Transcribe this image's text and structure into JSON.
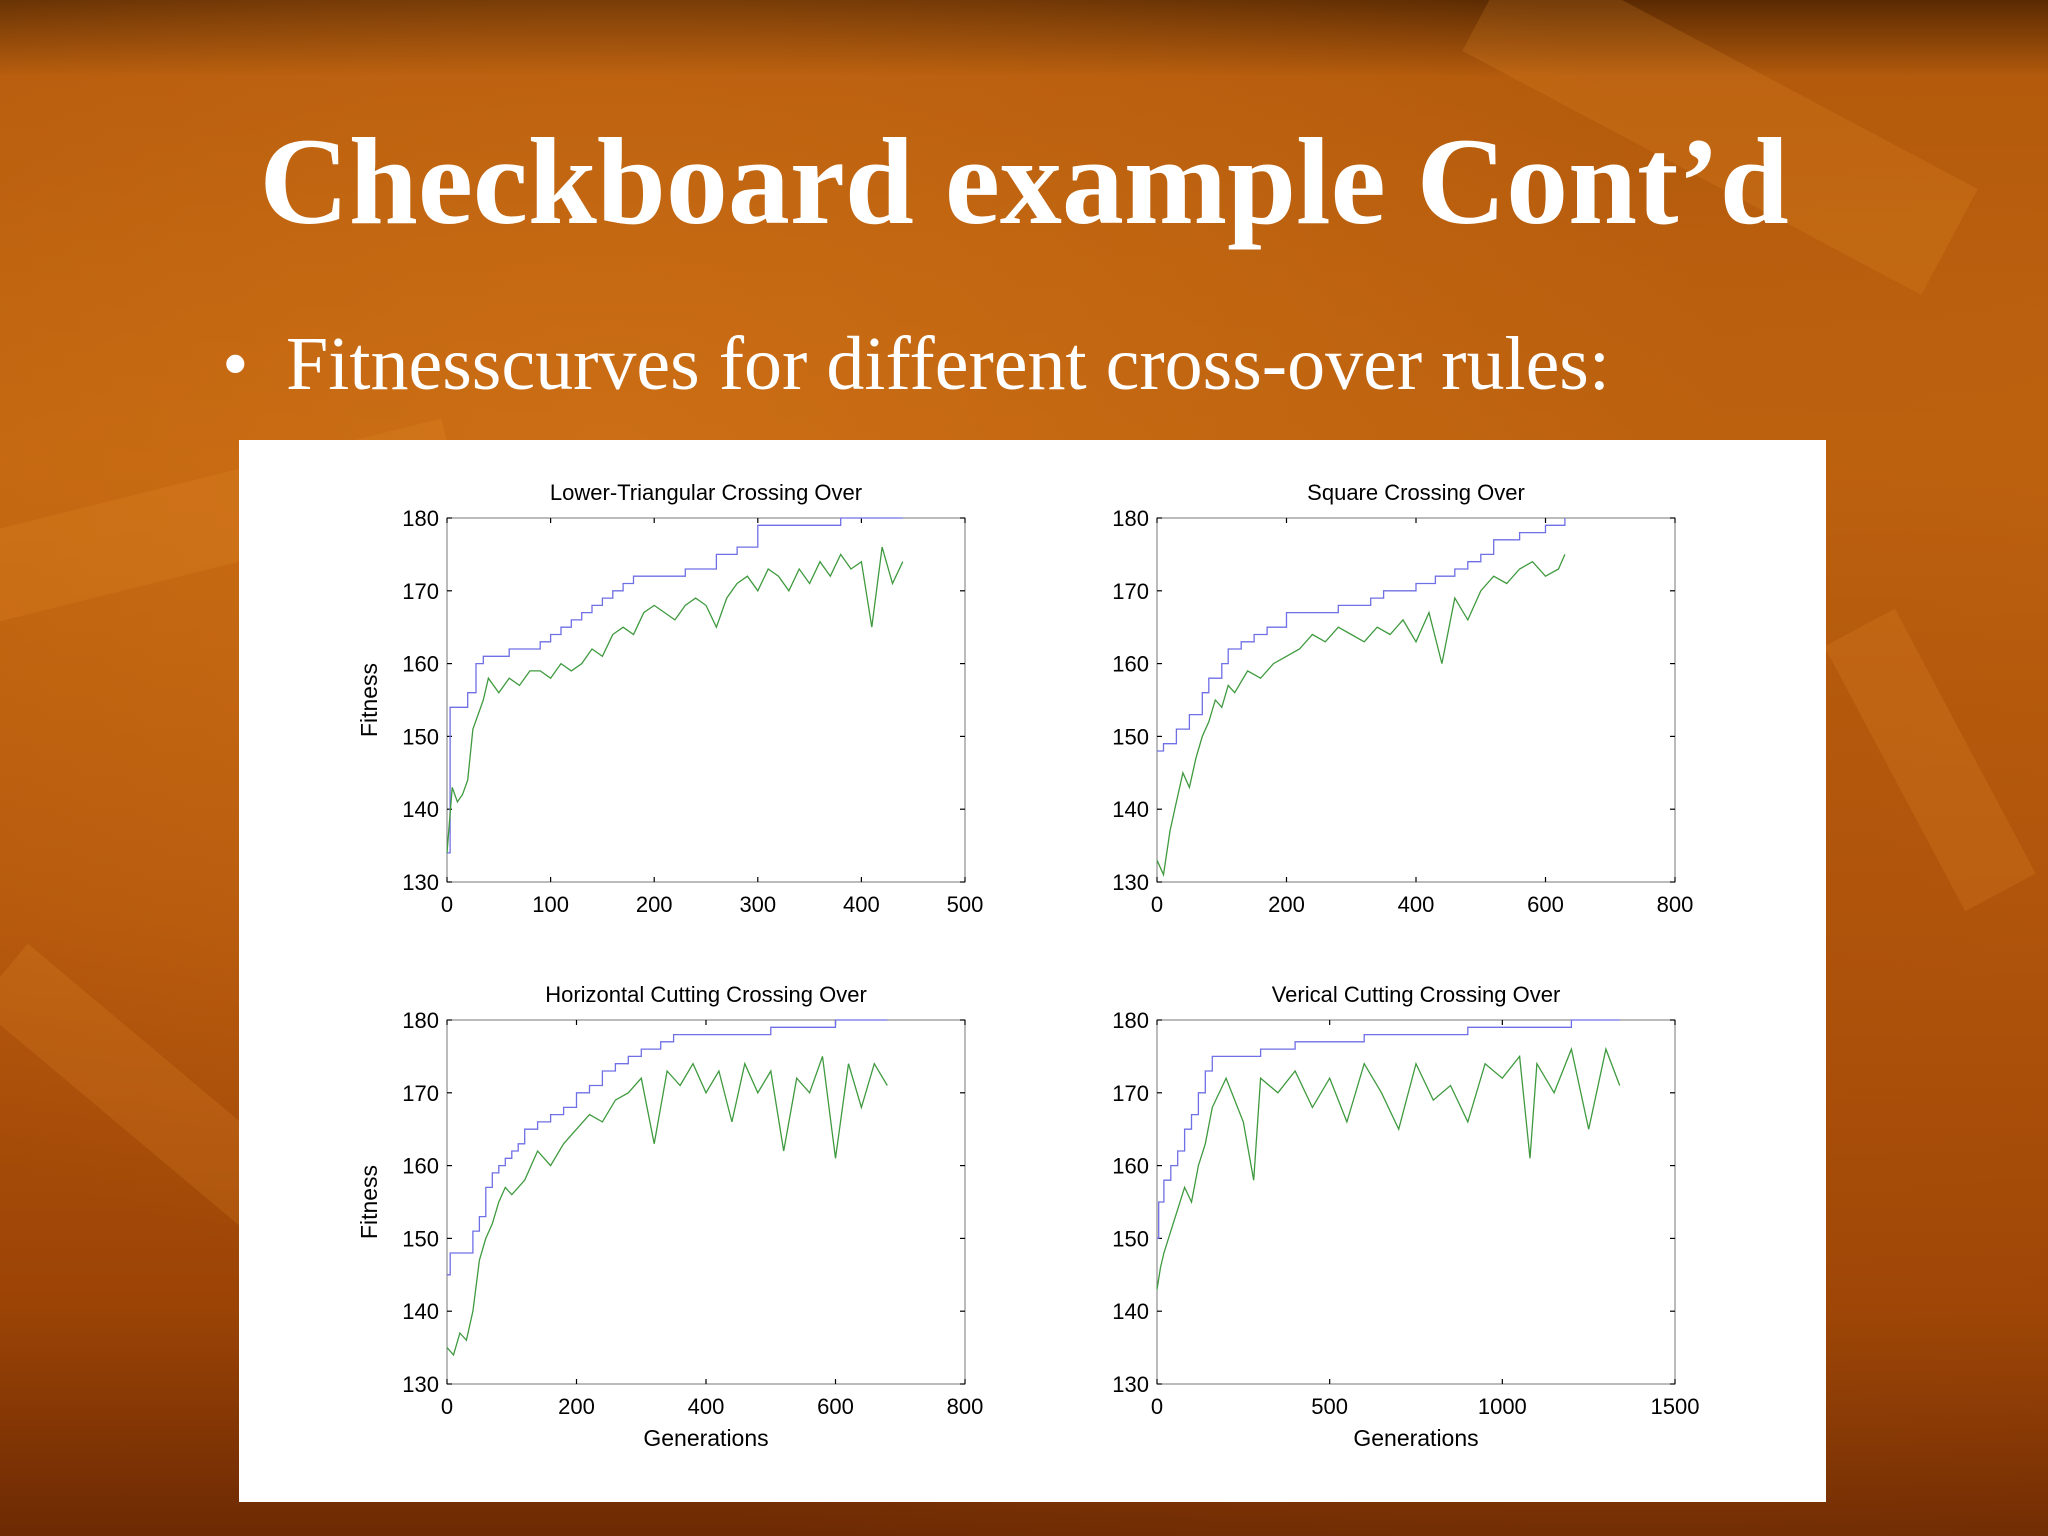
{
  "slide": {
    "title": "Checkboard example Cont’d",
    "bullet_symbol": "•",
    "bullet_text": "Fitnesscurves for different cross-over rules:"
  },
  "colors": {
    "best_fitness_line": "#6f6fe6",
    "mean_fitness_line": "#3f9a3f",
    "axes": "#777777"
  },
  "chart_data": [
    {
      "type": "line",
      "title": "Lower-Triangular Crossing Over",
      "xlabel": "",
      "ylabel": "Fitness",
      "xlim": [
        0,
        500
      ],
      "ylim": [
        130,
        180
      ],
      "xticks": [
        0,
        100,
        200,
        300,
        400,
        500
      ],
      "yticks": [
        130,
        140,
        150,
        160,
        170,
        180
      ],
      "grid": false,
      "series": [
        {
          "line_style": "step",
          "x": [
            0,
            3,
            20,
            28,
            35,
            60,
            90,
            100,
            110,
            120,
            130,
            140,
            150,
            160,
            170,
            180,
            200,
            230,
            260,
            280,
            300,
            350,
            380,
            440
          ],
          "y": [
            134,
            154,
            156,
            160,
            161,
            162,
            163,
            164,
            165,
            166,
            167,
            168,
            169,
            170,
            171,
            172,
            172,
            173,
            175,
            176,
            179,
            179,
            180,
            180
          ]
        },
        {
          "line_style": "line",
          "x": [
            0,
            5,
            10,
            15,
            20,
            25,
            30,
            35,
            40,
            50,
            60,
            70,
            80,
            90,
            100,
            110,
            120,
            130,
            140,
            150,
            160,
            170,
            180,
            190,
            200,
            210,
            220,
            230,
            240,
            250,
            260,
            270,
            280,
            290,
            300,
            310,
            320,
            330,
            340,
            350,
            360,
            370,
            380,
            390,
            400,
            410,
            420,
            430,
            440
          ],
          "y": [
            134,
            143,
            141,
            142,
            144,
            151,
            153,
            155,
            158,
            156,
            158,
            157,
            159,
            159,
            158,
            160,
            159,
            160,
            162,
            161,
            164,
            165,
            164,
            167,
            168,
            167,
            166,
            168,
            169,
            168,
            165,
            169,
            171,
            172,
            170,
            173,
            172,
            170,
            173,
            171,
            174,
            172,
            175,
            173,
            174,
            165,
            176,
            171,
            174
          ]
        }
      ]
    },
    {
      "type": "line",
      "title": "Square Crossing Over",
      "xlabel": "",
      "ylabel": "",
      "xlim": [
        0,
        800
      ],
      "ylim": [
        130,
        180
      ],
      "xticks": [
        0,
        200,
        400,
        600,
        800
      ],
      "yticks": [
        130,
        140,
        150,
        160,
        170,
        180
      ],
      "grid": false,
      "series": [
        {
          "line_style": "step",
          "x": [
            0,
            10,
            30,
            50,
            70,
            80,
            100,
            110,
            130,
            150,
            170,
            200,
            280,
            330,
            350,
            400,
            430,
            460,
            480,
            500,
            520,
            560,
            600,
            630
          ],
          "y": [
            148,
            149,
            151,
            153,
            156,
            158,
            160,
            162,
            163,
            164,
            165,
            167,
            168,
            169,
            170,
            171,
            172,
            173,
            174,
            175,
            177,
            178,
            179,
            180
          ]
        },
        {
          "line_style": "line",
          "x": [
            0,
            10,
            20,
            30,
            40,
            50,
            60,
            70,
            80,
            90,
            100,
            110,
            120,
            140,
            160,
            180,
            200,
            220,
            240,
            260,
            280,
            300,
            320,
            340,
            360,
            380,
            400,
            420,
            440,
            460,
            480,
            500,
            520,
            540,
            560,
            580,
            600,
            620,
            630
          ],
          "y": [
            133,
            131,
            137,
            141,
            145,
            143,
            147,
            150,
            152,
            155,
            154,
            157,
            156,
            159,
            158,
            160,
            161,
            162,
            164,
            163,
            165,
            164,
            163,
            165,
            164,
            166,
            163,
            167,
            160,
            169,
            166,
            170,
            172,
            171,
            173,
            174,
            172,
            173,
            175
          ]
        }
      ]
    },
    {
      "type": "line",
      "title": "Horizontal Cutting Crossing Over",
      "xlabel": "Generations",
      "ylabel": "Fitness",
      "xlim": [
        0,
        800
      ],
      "ylim": [
        130,
        180
      ],
      "xticks": [
        0,
        200,
        400,
        600,
        800
      ],
      "yticks": [
        130,
        140,
        150,
        160,
        170,
        180
      ],
      "grid": false,
      "series": [
        {
          "line_style": "step",
          "x": [
            0,
            5,
            20,
            40,
            50,
            60,
            70,
            80,
            90,
            100,
            110,
            120,
            140,
            160,
            180,
            200,
            220,
            240,
            260,
            280,
            300,
            330,
            350,
            400,
            500,
            600,
            680
          ],
          "y": [
            145,
            148,
            148,
            151,
            153,
            157,
            159,
            160,
            161,
            162,
            163,
            165,
            166,
            167,
            168,
            170,
            171,
            173,
            174,
            175,
            176,
            177,
            178,
            178,
            179,
            180,
            180
          ]
        },
        {
          "line_style": "line",
          "x": [
            0,
            10,
            20,
            30,
            40,
            50,
            60,
            70,
            80,
            90,
            100,
            120,
            140,
            160,
            180,
            200,
            220,
            240,
            260,
            280,
            300,
            320,
            340,
            360,
            380,
            400,
            420,
            440,
            460,
            480,
            500,
            520,
            540,
            560,
            580,
            600,
            620,
            640,
            660,
            680
          ],
          "y": [
            135,
            134,
            137,
            136,
            140,
            147,
            150,
            152,
            155,
            157,
            156,
            158,
            162,
            160,
            163,
            165,
            167,
            166,
            169,
            170,
            172,
            163,
            173,
            171,
            174,
            170,
            173,
            166,
            174,
            170,
            173,
            162,
            172,
            170,
            175,
            161,
            174,
            168,
            174,
            171
          ]
        }
      ]
    },
    {
      "type": "line",
      "title": "Verical Cutting Crossing Over",
      "xlabel": "Generations",
      "ylabel": "",
      "xlim": [
        0,
        1500
      ],
      "ylim": [
        130,
        180
      ],
      "xticks": [
        0,
        500,
        1000,
        1500
      ],
      "yticks": [
        130,
        140,
        150,
        160,
        170,
        180
      ],
      "grid": false,
      "series": [
        {
          "line_style": "step",
          "x": [
            0,
            5,
            20,
            40,
            60,
            80,
            100,
            120,
            140,
            160,
            200,
            300,
            400,
            600,
            800,
            900,
            1000,
            1200,
            1340
          ],
          "y": [
            150,
            155,
            158,
            160,
            162,
            165,
            167,
            170,
            173,
            175,
            175,
            176,
            177,
            178,
            178,
            179,
            179,
            180,
            180
          ]
        },
        {
          "line_style": "line",
          "x": [
            0,
            10,
            20,
            40,
            60,
            80,
            100,
            120,
            140,
            160,
            200,
            250,
            280,
            300,
            350,
            400,
            450,
            500,
            550,
            600,
            650,
            700,
            750,
            800,
            850,
            900,
            950,
            1000,
            1050,
            1080,
            1100,
            1150,
            1200,
            1250,
            1300,
            1340
          ],
          "y": [
            143,
            146,
            148,
            151,
            154,
            157,
            155,
            160,
            163,
            168,
            172,
            166,
            158,
            172,
            170,
            173,
            168,
            172,
            166,
            174,
            170,
            165,
            174,
            169,
            171,
            166,
            174,
            172,
            175,
            161,
            174,
            170,
            176,
            165,
            176,
            171
          ]
        }
      ]
    }
  ]
}
